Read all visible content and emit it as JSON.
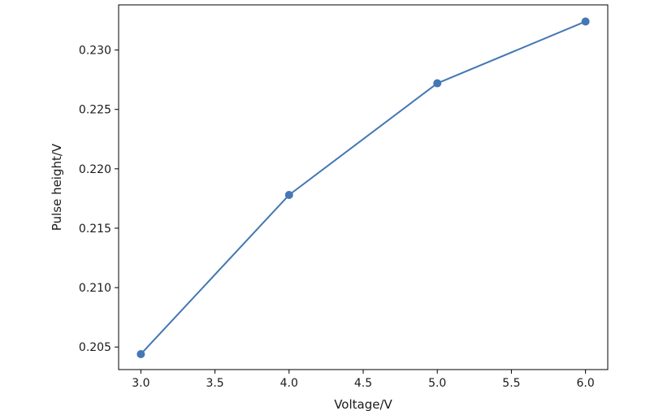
{
  "chart_data": {
    "type": "line",
    "title": "",
    "xlabel": "Voltage/V",
    "ylabel": "Pulse height/V",
    "xlim": [
      2.85,
      6.15
    ],
    "ylim": [
      0.2031,
      0.2338
    ],
    "xticks": [
      3.0,
      3.5,
      4.0,
      4.5,
      5.0,
      5.5,
      6.0
    ],
    "xtick_labels": [
      "3.0",
      "3.5",
      "4.0",
      "4.5",
      "5.0",
      "5.5",
      "6.0"
    ],
    "yticks": [
      0.205,
      0.21,
      0.215,
      0.22,
      0.225,
      0.23
    ],
    "ytick_labels": [
      "0.205",
      "0.210",
      "0.215",
      "0.220",
      "0.225",
      "0.230"
    ],
    "grid": false,
    "series": [
      {
        "color": "#4477b4",
        "marker": "circle",
        "x": [
          3.0,
          4.0,
          5.0,
          6.0
        ],
        "y": [
          0.2044,
          0.2178,
          0.2272,
          0.2324
        ]
      }
    ]
  }
}
